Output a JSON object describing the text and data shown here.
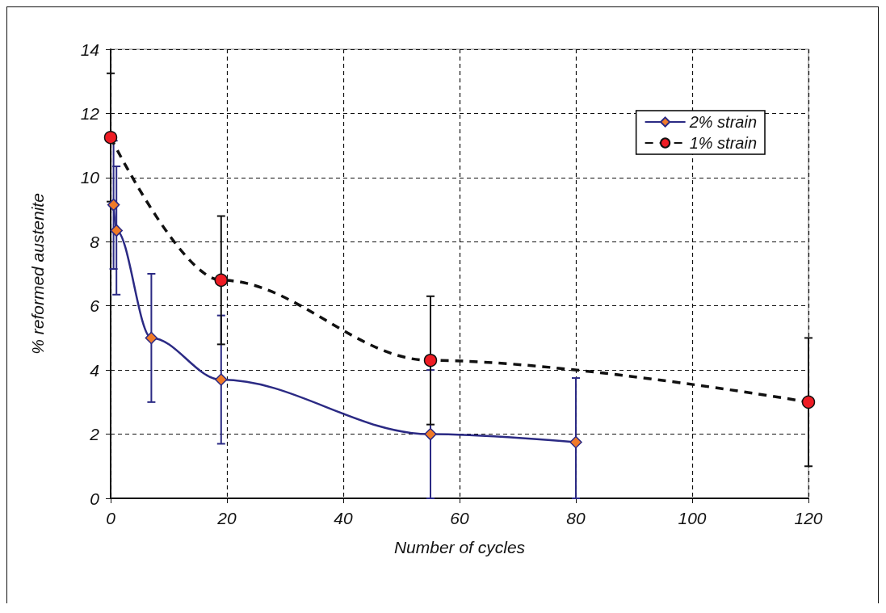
{
  "chart_data": {
    "type": "line",
    "xlabel": "Number of cycles",
    "ylabel": "% reformed austenite",
    "xlim": [
      0,
      120
    ],
    "xticks": [
      0,
      20,
      40,
      60,
      80,
      100,
      120
    ],
    "ylim": [
      0,
      14
    ],
    "yticks": [
      0,
      2,
      4,
      6,
      8,
      10,
      12,
      14
    ],
    "grid": true,
    "legend": "top right",
    "series": [
      {
        "name": "2% strain",
        "color": "#2b2a84",
        "colors": [
          "#f07a28",
          "#f07a28",
          "#f07a28",
          "#f07a28",
          "#f07a28",
          "#f07a28"
        ],
        "marker": "diamond",
        "line_style": "solid",
        "x": [
          0.5,
          1,
          7,
          19,
          55,
          80
        ],
        "values": [
          9.15,
          8.35,
          5.0,
          3.7,
          2.0,
          1.75
        ],
        "errors": [
          2,
          2,
          2,
          2,
          2,
          [
            0,
            3.75
          ]
        ]
      },
      {
        "name": "1% strain",
        "color": "#111111",
        "colors": [
          "#ee1c24",
          "#ee1c24",
          "#ee1c24",
          "#ee1c24"
        ],
        "marker": "circle",
        "line_style": "dashed",
        "x": [
          0,
          19,
          55,
          120
        ],
        "values": [
          11.25,
          6.8,
          4.3,
          3.0
        ],
        "errors": [
          2,
          2,
          2,
          2
        ]
      }
    ]
  }
}
